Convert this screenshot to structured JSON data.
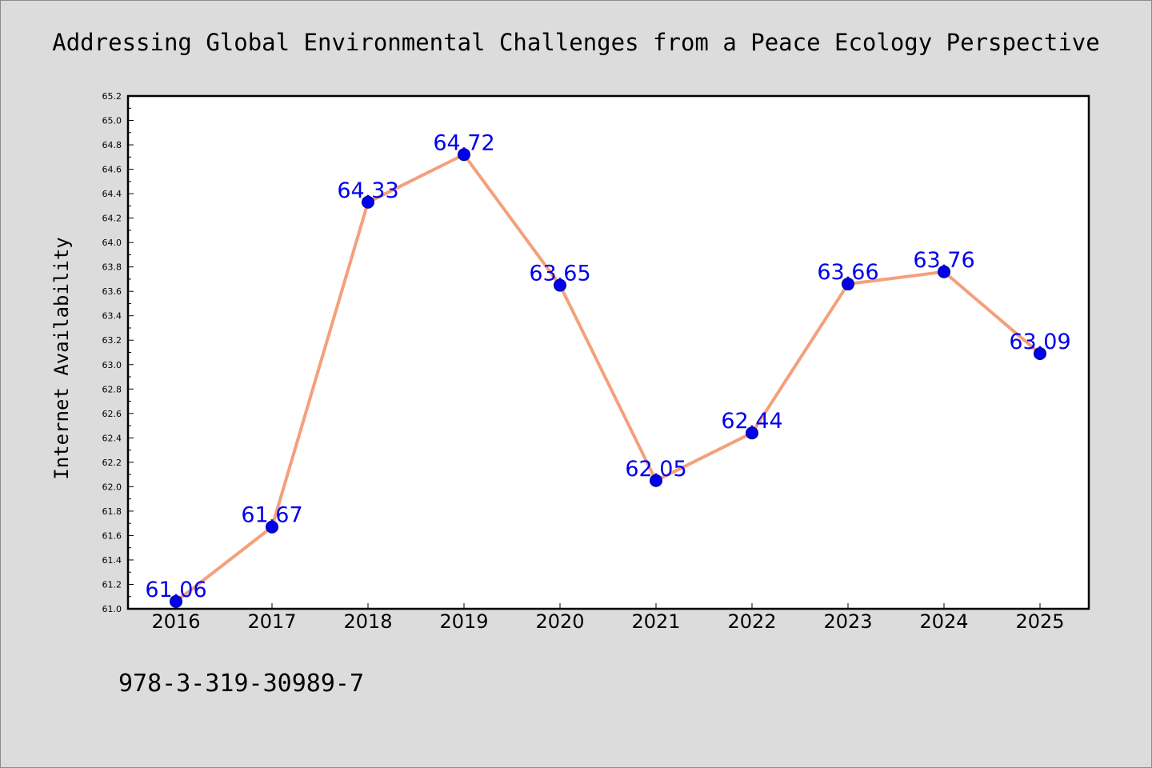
{
  "chart_data": {
    "type": "line",
    "title": "Addressing Global Environmental Challenges from a Peace Ecology Perspective",
    "xlabel": "",
    "ylabel": "Internet Availability",
    "categories": [
      "2016",
      "2017",
      "2018",
      "2019",
      "2020",
      "2021",
      "2022",
      "2023",
      "2024",
      "2025"
    ],
    "series": [
      {
        "values": [
          61.06,
          61.67,
          64.33,
          64.72,
          63.65,
          62.05,
          62.44,
          63.66,
          63.76,
          63.09
        ],
        "labels": [
          "61.06",
          "61.67",
          "64.33",
          "64.72",
          "63.65",
          "62.05",
          "62.44",
          "63.66",
          "63.76",
          "63.09"
        ]
      }
    ],
    "ylim": [
      61.0,
      65.2
    ],
    "ytick_labels": [
      "61.0",
      "61.2",
      "61.4",
      "61.6",
      "61.8",
      "62.0",
      "62.2",
      "62.4",
      "62.6",
      "62.8",
      "63.0",
      "63.2",
      "63.4",
      "63.6",
      "63.8",
      "64.0",
      "64.2",
      "64.4",
      "64.6",
      "64.8",
      "65.0",
      "65.2"
    ],
    "grid": false,
    "legend": "none",
    "colors": {
      "line": "#f4a07c",
      "marker": "#0000ee",
      "marker_edge": "#00007a",
      "data_label": "#0000ee",
      "background": "#dcdcdc",
      "plot_background": "#ffffff",
      "axes": "#000000"
    }
  },
  "footer": {
    "isbn": "978-3-319-30989-7"
  }
}
